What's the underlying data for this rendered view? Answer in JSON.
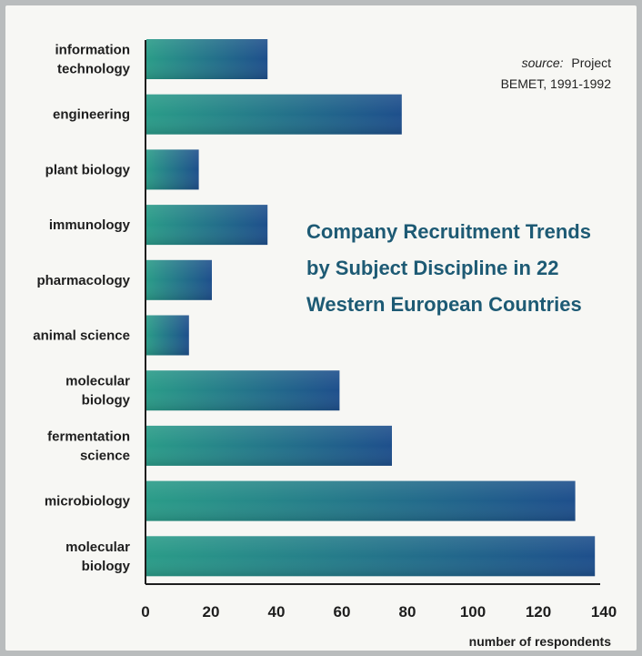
{
  "chart_data": {
    "type": "bar",
    "orientation": "horizontal",
    "title_lines": [
      "Company Recruitment Trends",
      "by Subject Discipline in 22",
      "Western European Countries"
    ],
    "source": {
      "label": "source:",
      "line1": "Project",
      "line2": "BEMET, 1991-1992"
    },
    "xlabel": "number of respondents",
    "ylabel": "",
    "xlim": [
      0,
      140
    ],
    "xticks": [
      "0",
      "20",
      "40",
      "60",
      "80",
      "100",
      "120",
      "140"
    ],
    "categories": [
      [
        "information",
        "technology"
      ],
      [
        "engineering"
      ],
      [
        "plant biology"
      ],
      [
        "immunology"
      ],
      [
        "pharmacology"
      ],
      [
        "animal science"
      ],
      [
        "molecular",
        "biology"
      ],
      [
        "fermentation",
        "science"
      ],
      [
        "microbiology"
      ],
      [
        "molecular",
        "biology"
      ]
    ],
    "values": [
      37,
      78,
      16,
      37,
      20,
      13,
      59,
      75,
      131,
      137
    ],
    "grid": false,
    "legend": "none"
  },
  "colors": {
    "bar_start": "#2a9c88",
    "bar_end": "#1e4f8c",
    "title": "#1d5a74",
    "axis": "#1e1e1e",
    "background": "#f7f7f4"
  }
}
